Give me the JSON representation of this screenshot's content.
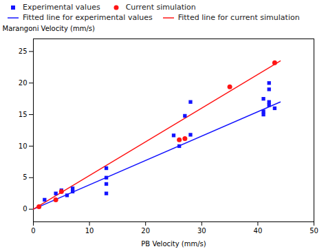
{
  "chart_data": {
    "type": "scatter",
    "xlabel": "PB Velocity (mm/s)",
    "ylabel": "Marangoni Velocity (mm/s)",
    "xlim": [
      0,
      50
    ],
    "ylim": [
      -2,
      27
    ],
    "xticks": [
      0,
      10,
      20,
      30,
      40,
      50
    ],
    "yticks": [
      0,
      5,
      10,
      15,
      20,
      25
    ],
    "legend": "upper left",
    "series": [
      {
        "name": "Experimental values",
        "type": "scatter",
        "marker": "square",
        "color": "#1414FF",
        "x": [
          2,
          4,
          5,
          6,
          7,
          7,
          13,
          13,
          13,
          13,
          25,
          26,
          27,
          28,
          28,
          41,
          41,
          41,
          42,
          42,
          42,
          42,
          43
        ],
        "values": [
          1.5,
          2.5,
          3.0,
          2.2,
          2.8,
          3.3,
          2.5,
          4.0,
          5.0,
          6.5,
          11.7,
          10.0,
          14.8,
          17.0,
          11.8,
          15.0,
          15.5,
          17.5,
          16.5,
          17.0,
          19.0,
          20.0,
          16.0
        ]
      },
      {
        "name": "Current simulation",
        "type": "scatter",
        "marker": "circle",
        "color": "#FF1414",
        "x": [
          1,
          4,
          5,
          26,
          27,
          35,
          43
        ],
        "values": [
          0.4,
          1.5,
          2.8,
          11.0,
          11.2,
          19.4,
          23.2
        ]
      },
      {
        "name": "Fitted line for experimental values",
        "type": "line",
        "color": "#1414FF",
        "x": [
          0,
          44
        ],
        "values": [
          0.0,
          17.0
        ]
      },
      {
        "name": "Fitted line for current simulation",
        "type": "line",
        "color": "#FF1414",
        "x": [
          0,
          44
        ],
        "values": [
          0.0,
          23.5
        ]
      }
    ]
  }
}
